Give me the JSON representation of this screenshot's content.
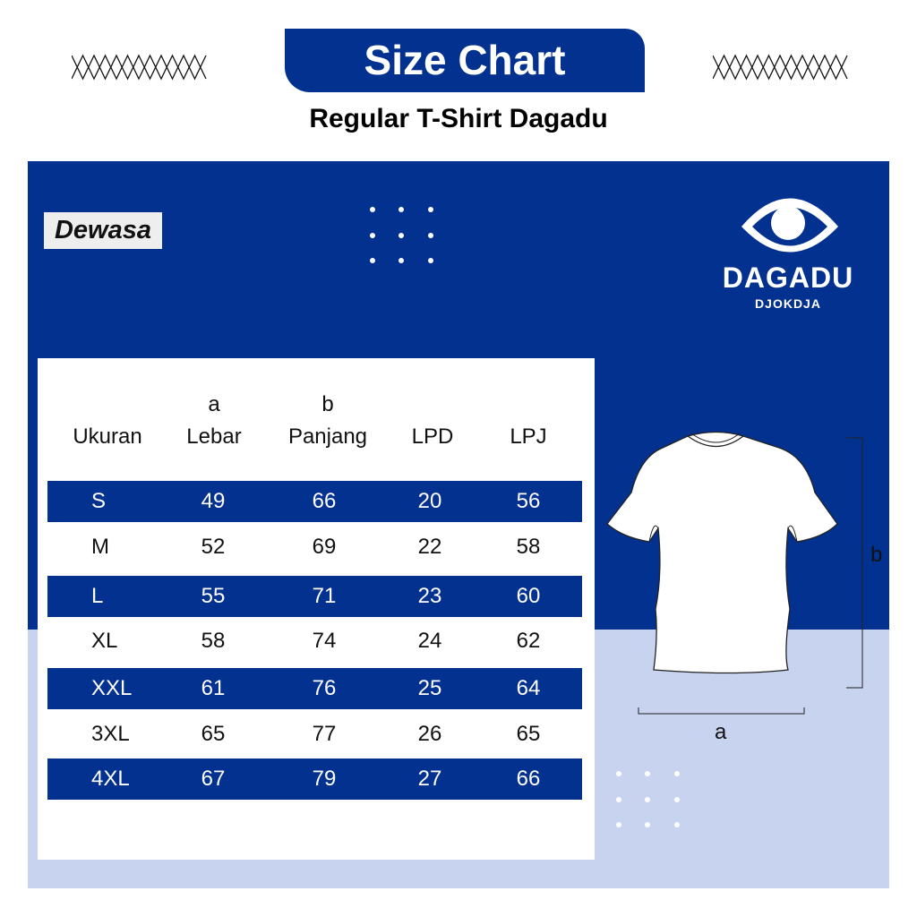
{
  "header": {
    "title": "Size Chart",
    "subtitle": "Regular T-Shirt Dagadu"
  },
  "category_label": "Dewasa",
  "brand": {
    "name": "DAGADU",
    "tagline": "DJOKDJA"
  },
  "colors": {
    "primary": "#03318f",
    "light": "#c8d3ef"
  },
  "table": {
    "headers": [
      {
        "letter": "",
        "label": "Ukuran"
      },
      {
        "letter": "a",
        "label": "Lebar"
      },
      {
        "letter": "b",
        "label": "Panjang"
      },
      {
        "letter": "",
        "label": "LPD"
      },
      {
        "letter": "",
        "label": "LPJ"
      }
    ],
    "rows": [
      [
        "S",
        "49",
        "66",
        "20",
        "56"
      ],
      [
        "M",
        "52",
        "69",
        "22",
        "58"
      ],
      [
        "L",
        "55",
        "71",
        "23",
        "60"
      ],
      [
        "XL",
        "58",
        "74",
        "24",
        "62"
      ],
      [
        "XXL",
        "61",
        "76",
        "25",
        "64"
      ],
      [
        "3XL",
        "65",
        "77",
        "26",
        "65"
      ],
      [
        "4XL",
        "67",
        "79",
        "27",
        "66"
      ]
    ]
  },
  "diagram": {
    "width_label": "a",
    "length_label": "b"
  }
}
